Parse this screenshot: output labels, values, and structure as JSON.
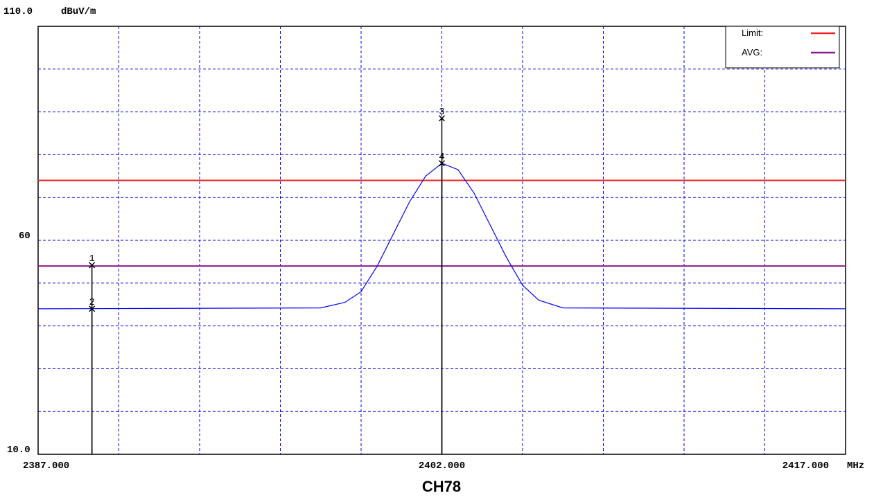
{
  "caption": "CH78",
  "chart_data": {
    "type": "line",
    "y_unit": "dBuV/m",
    "x_unit": "MHz",
    "ylim": [
      10.0,
      110.0
    ],
    "xlim": [
      2387.0,
      2417.0
    ],
    "y_tick_labels": [
      "110.0",
      "60",
      "10.0"
    ],
    "y_tick_values": [
      110.0,
      60,
      10.0
    ],
    "x_tick_labels": [
      "2387.000",
      "2402.000",
      "2417.000"
    ],
    "x_tick_values": [
      2387.0,
      2402.0,
      2417.0
    ],
    "grid": true,
    "legend_position": "top-right",
    "legend": [
      {
        "label": "Limit:",
        "color": "#ee2222"
      },
      {
        "label": "AVG:",
        "color": "#8b1a8b"
      }
    ],
    "limit_lines": [
      {
        "name": "Limit",
        "y": 74,
        "color": "#ee2222"
      },
      {
        "name": "AVG",
        "y": 54,
        "color": "#8b1a8b"
      }
    ],
    "series": [
      {
        "color": "#0000ff",
        "x": [
          2387.0,
          2397.5,
          2398.4,
          2399.0,
          2399.6,
          2400.2,
          2400.8,
          2401.4,
          2402.0,
          2402.6,
          2403.2,
          2403.8,
          2404.4,
          2405.0,
          2405.6,
          2406.5,
          2417.0
        ],
        "y": [
          44.0,
          44.2,
          45.5,
          48.0,
          54.0,
          61.5,
          69.0,
          75.0,
          78.0,
          76.5,
          71.0,
          63.5,
          56.0,
          49.5,
          46.0,
          44.2,
          44.0
        ]
      }
    ],
    "markers": [
      {
        "label": "1",
        "x": 2389.0,
        "y": 54.2
      },
      {
        "label": "2",
        "x": 2389.0,
        "y": 44.0
      },
      {
        "label": "3",
        "x": 2402.0,
        "y": 88.5
      },
      {
        "label": "4",
        "x": 2402.0,
        "y": 78.0
      }
    ]
  }
}
